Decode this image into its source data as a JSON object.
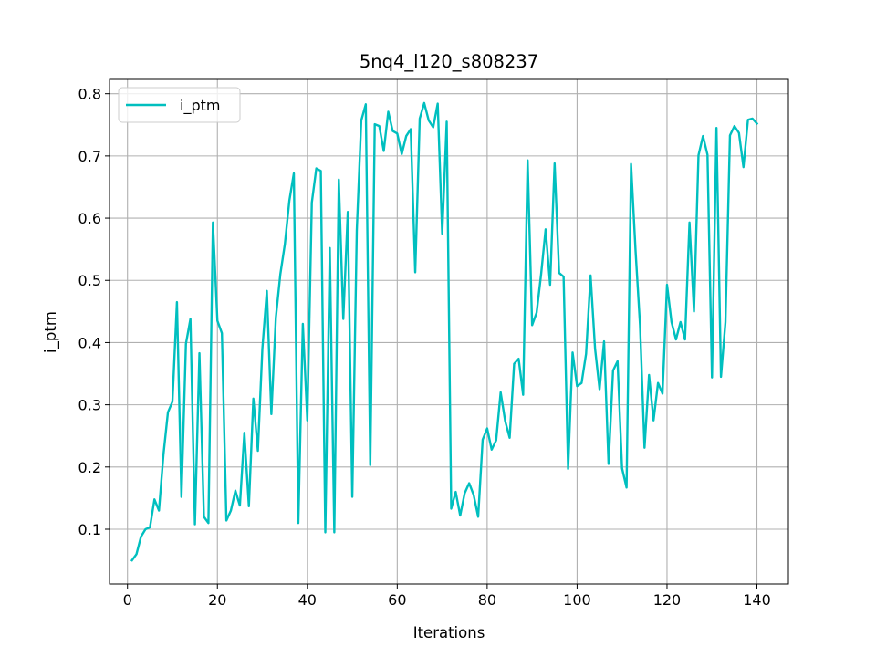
{
  "chart_data": {
    "type": "line",
    "title": "5nq4_l120_s808237",
    "xlabel": "Iterations",
    "ylabel": "i_ptm",
    "xlim": [
      -4,
      147
    ],
    "ylim": [
      0.012,
      0.823
    ],
    "xticks": [
      0,
      20,
      40,
      60,
      80,
      100,
      120,
      140
    ],
    "yticks": [
      0.1,
      0.2,
      0.3,
      0.4,
      0.5,
      0.6,
      0.7,
      0.8
    ],
    "grid": true,
    "legend_position": "upper-left",
    "series": [
      {
        "name": "i_ptm",
        "color": "#00bfbf",
        "x": [
          1,
          2,
          3,
          4,
          5,
          6,
          7,
          8,
          9,
          10,
          11,
          12,
          13,
          14,
          15,
          16,
          17,
          18,
          19,
          20,
          21,
          22,
          23,
          24,
          25,
          26,
          27,
          28,
          29,
          30,
          31,
          32,
          33,
          34,
          35,
          36,
          37,
          38,
          39,
          40,
          41,
          42,
          43,
          44,
          45,
          46,
          47,
          48,
          49,
          50,
          51,
          52,
          53,
          54,
          55,
          56,
          57,
          58,
          59,
          60,
          61,
          62,
          63,
          64,
          65,
          66,
          67,
          68,
          69,
          70,
          71,
          72,
          73,
          74,
          75,
          76,
          77,
          78,
          79,
          80,
          81,
          82,
          83,
          84,
          85,
          86,
          87,
          88,
          89,
          90,
          91,
          92,
          93,
          94,
          95,
          96,
          97,
          98,
          99,
          100,
          101,
          102,
          103,
          104,
          105,
          106,
          107,
          108,
          109,
          110,
          111,
          112,
          113,
          114,
          115,
          116,
          117,
          118,
          119,
          120,
          121,
          122,
          123,
          124,
          125,
          126,
          127,
          128,
          129,
          130,
          131,
          132,
          133,
          134,
          135,
          136,
          137,
          138,
          139,
          140
        ],
        "values": [
          0.05,
          0.06,
          0.088,
          0.1,
          0.103,
          0.148,
          0.13,
          0.22,
          0.288,
          0.305,
          0.465,
          0.152,
          0.398,
          0.438,
          0.108,
          0.383,
          0.12,
          0.11,
          0.593,
          0.435,
          0.415,
          0.114,
          0.13,
          0.162,
          0.138,
          0.255,
          0.137,
          0.31,
          0.226,
          0.39,
          0.483,
          0.285,
          0.44,
          0.51,
          0.558,
          0.628,
          0.672,
          0.11,
          0.43,
          0.275,
          0.625,
          0.68,
          0.676,
          0.095,
          0.552,
          0.095,
          0.662,
          0.438,
          0.61,
          0.152,
          0.58,
          0.757,
          0.783,
          0.203,
          0.751,
          0.748,
          0.708,
          0.771,
          0.74,
          0.736,
          0.703,
          0.732,
          0.743,
          0.513,
          0.76,
          0.785,
          0.757,
          0.746,
          0.784,
          0.575,
          0.755,
          0.133,
          0.16,
          0.122,
          0.158,
          0.174,
          0.155,
          0.12,
          0.244,
          0.262,
          0.228,
          0.243,
          0.32,
          0.274,
          0.247,
          0.366,
          0.374,
          0.316,
          0.693,
          0.428,
          0.448,
          0.51,
          0.582,
          0.493,
          0.688,
          0.512,
          0.506,
          0.197,
          0.384,
          0.33,
          0.335,
          0.382,
          0.508,
          0.39,
          0.325,
          0.402,
          0.205,
          0.355,
          0.37,
          0.198,
          0.167,
          0.687,
          0.548,
          0.428,
          0.231,
          0.348,
          0.275,
          0.335,
          0.318,
          0.493,
          0.433,
          0.405,
          0.433,
          0.405,
          0.593,
          0.45,
          0.701,
          0.732,
          0.702,
          0.344,
          0.745,
          0.345,
          0.433,
          0.733,
          0.748,
          0.737,
          0.682,
          0.758,
          0.76,
          0.752
        ]
      }
    ]
  }
}
